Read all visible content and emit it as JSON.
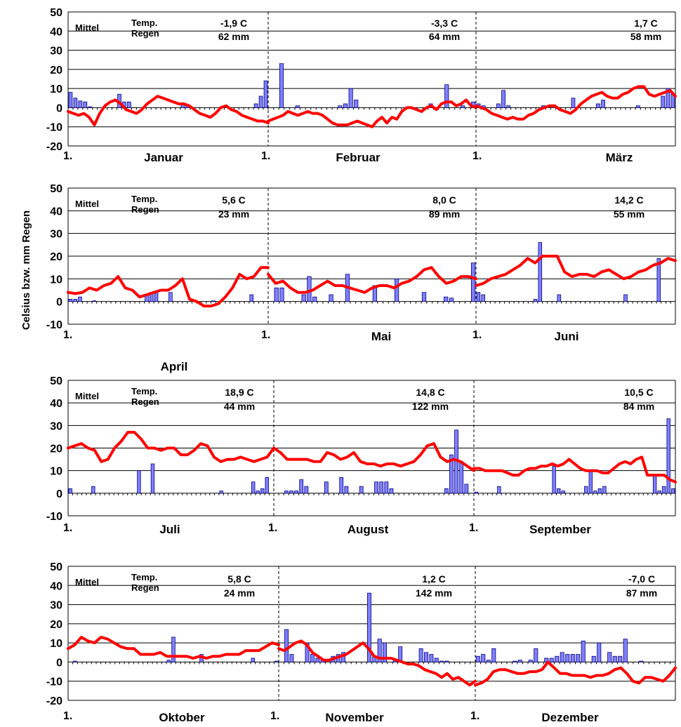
{
  "ylabel": "Celsius bzw. mm Regen",
  "colors": {
    "temperature": "#ff0000",
    "rain_fill": "#8080ff",
    "rain_stroke": "#00007f",
    "grid": "#000000"
  },
  "legend": {
    "mittel": "Mittel",
    "temp": "Temp.",
    "regen": "Regen"
  },
  "chart_data": [
    {
      "type": "bar",
      "yticks": [
        50,
        40,
        30,
        20,
        10,
        0,
        -10,
        -20
      ],
      "ylim": [
        -20,
        50
      ],
      "months": [
        {
          "name": "Januar",
          "start": "1.",
          "temp_summary": "-1,9  C",
          "rain_summary": "62 mm",
          "rain": [
            8,
            5,
            3.5,
            3,
            0.5,
            0,
            0,
            0,
            0,
            0,
            7,
            3,
            3,
            0,
            0,
            0,
            0,
            0,
            0,
            0,
            0,
            0,
            0,
            2,
            1,
            0,
            0,
            0,
            0,
            0,
            0,
            0,
            0,
            0,
            0,
            0,
            0,
            0,
            2,
            6,
            14
          ],
          "temp": [
            -2,
            -3,
            -4,
            -3,
            -5,
            -9,
            -3,
            1,
            3,
            4,
            2,
            -1,
            -2,
            -3,
            -1,
            2,
            4,
            6,
            5,
            4,
            3,
            2,
            2,
            1,
            -1,
            -3,
            -4,
            -5,
            -3,
            0,
            1,
            -1,
            -2,
            -4,
            -5,
            -6,
            -7,
            -7,
            -8
          ]
        },
        {
          "name": "Februar",
          "start": "1.",
          "temp_summary": "-3,3  C",
          "rain_summary": "64 mm",
          "rain": [
            0,
            0,
            23,
            0,
            0,
            1,
            0,
            0,
            0,
            0,
            0,
            0,
            0,
            1,
            2,
            10,
            4,
            0,
            0,
            0,
            0,
            0,
            0,
            0,
            0,
            0,
            0,
            0,
            0,
            0,
            2,
            0,
            0,
            12,
            0,
            0,
            1,
            0,
            3
          ],
          "temp": [
            -7,
            -6,
            -5,
            -4,
            -2,
            -3,
            -4,
            -3,
            -2,
            -3,
            -3,
            -4,
            -6,
            -8,
            -9,
            -9,
            -9,
            -8,
            -7,
            -8,
            -9,
            -10,
            -7,
            -5,
            -8,
            -5,
            -6,
            -2,
            0,
            0,
            -1,
            -2,
            0,
            1,
            -1,
            2,
            3,
            3,
            1,
            2,
            4,
            1,
            0
          ]
        },
        {
          "name": "März",
          "start": "1.",
          "temp_summary": "1,7  C",
          "rain_summary": "58 mm",
          "rain": [
            2,
            1,
            0,
            0,
            2,
            9,
            1,
            0,
            0,
            0,
            0,
            0,
            0,
            1,
            0,
            0,
            0,
            0,
            0,
            5,
            0,
            0,
            0,
            0,
            2,
            4,
            0,
            0,
            0,
            0,
            0,
            0,
            1,
            0,
            0,
            0,
            0,
            6,
            10,
            7
          ],
          "temp": [
            1,
            0,
            -1,
            -3,
            -4,
            -5,
            -6,
            -5,
            -6,
            -6,
            -4,
            -3,
            -1,
            0,
            1,
            1,
            -1,
            -2,
            -3,
            -1,
            2,
            4,
            6,
            7,
            8,
            6,
            5,
            5,
            7,
            8,
            10,
            11,
            11,
            7,
            6,
            7,
            8,
            9,
            6
          ]
        }
      ]
    },
    {
      "type": "bar",
      "yticks": [
        50,
        40,
        30,
        20,
        10,
        0,
        -10
      ],
      "ylim": [
        -10,
        50
      ],
      "months": [
        {
          "name": "April",
          "start": "1.",
          "temp_summary": "5,6  C",
          "rain_summary": "23 mm",
          "rain": [
            1,
            1,
            2,
            0,
            0,
            0.3,
            0,
            0,
            0,
            0,
            0,
            0,
            0,
            0,
            0,
            0,
            3,
            4,
            4,
            0,
            0,
            4,
            0,
            0,
            0,
            0,
            0,
            0,
            0,
            0,
            0.3,
            0,
            0,
            0,
            0,
            0,
            0,
            0,
            3,
            0,
            0,
            0
          ],
          "temp": [
            4,
            3.5,
            4,
            6,
            5,
            7,
            8,
            11,
            6,
            5,
            2,
            3,
            4,
            5,
            5,
            7,
            10,
            1,
            0,
            -2,
            -2,
            -1,
            2,
            6,
            12,
            10,
            11,
            15,
            15
          ]
        },
        {
          "name": "Mai",
          "start": "1.",
          "temp_summary": "8,0  C",
          "rain_summary": "89 mm",
          "rain": [
            0,
            6,
            6,
            0,
            0,
            0,
            3,
            11,
            2,
            0,
            0,
            3,
            0,
            0,
            12,
            0,
            0,
            0,
            0,
            7,
            0,
            0,
            0,
            10,
            0,
            0,
            0,
            0,
            4,
            0,
            0,
            0,
            2,
            1.5,
            0,
            0,
            0,
            17
          ],
          "temp": [
            12,
            8,
            9,
            6,
            4,
            4,
            5,
            7,
            9,
            7,
            7,
            6,
            5,
            4,
            6,
            7,
            7,
            6,
            8,
            9,
            11,
            14,
            15,
            11,
            8,
            9,
            11,
            11,
            10
          ]
        },
        {
          "name": "Juni",
          "start": "1.",
          "temp_summary": "14,2  C",
          "rain_summary": "55 mm",
          "rain": [
            4,
            3,
            0,
            0,
            0,
            0,
            0,
            0,
            0,
            0,
            0,
            0,
            1,
            26,
            0,
            0,
            0,
            3,
            0,
            0,
            0,
            0,
            0,
            0,
            0,
            0,
            0,
            0,
            0,
            0,
            0,
            3,
            0,
            0,
            0,
            0,
            0,
            0,
            19,
            0,
            0,
            0
          ],
          "temp": [
            7,
            8,
            10,
            11,
            12,
            14,
            16,
            19,
            17,
            20,
            20,
            20,
            13,
            11,
            12,
            12,
            11,
            13,
            14,
            12,
            10,
            11,
            13,
            14,
            16,
            17,
            19,
            18
          ]
        }
      ]
    },
    {
      "type": "bar",
      "yticks": [
        50,
        40,
        30,
        20,
        10,
        0,
        -10
      ],
      "ylim": [
        -10,
        50
      ],
      "months": [
        {
          "name": "Juli",
          "start": "1.",
          "temp_summary": "18,9  C",
          "rain_summary": "44 mm",
          "rain": [
            2,
            0,
            0,
            0,
            0,
            3,
            0,
            0,
            0,
            0,
            0,
            0,
            0,
            0,
            0,
            10,
            0,
            0,
            13,
            0,
            0,
            0,
            0,
            0,
            0,
            0,
            0,
            0,
            0,
            0,
            0,
            0,
            0,
            1,
            0,
            0,
            0,
            0,
            0,
            0,
            5,
            1,
            2,
            7,
            0
          ],
          "temp": [
            20,
            21,
            22,
            20,
            19,
            14,
            15,
            20,
            23,
            27,
            27,
            24,
            20,
            20,
            19,
            20,
            20,
            17,
            17,
            19,
            22,
            21,
            16,
            14,
            15,
            15,
            16,
            15,
            14,
            15,
            16,
            20
          ]
        },
        {
          "name": "August",
          "start": "1.",
          "temp_summary": "14,8  C",
          "rain_summary": "122 mm",
          "rain": [
            0,
            0,
            1,
            1,
            1,
            6,
            3,
            0,
            0,
            0,
            5,
            0,
            0,
            7,
            3,
            0,
            0,
            3,
            0,
            0,
            5,
            5,
            5,
            2,
            0,
            0,
            0,
            0,
            0,
            0,
            0,
            0,
            0,
            0,
            2,
            17,
            28,
            14,
            4,
            0
          ],
          "temp": [
            20,
            18,
            15,
            15,
            15,
            15,
            14,
            14,
            18,
            17,
            15,
            16,
            18,
            14,
            13,
            13,
            12,
            13,
            13,
            12,
            13,
            14,
            17,
            21,
            22,
            16,
            14,
            15,
            14,
            12,
            10
          ]
        },
        {
          "name": "September",
          "start": "1.",
          "temp_summary": "10,5  C",
          "rain_summary": "84 mm",
          "rain": [
            0.5,
            0,
            0,
            0,
            0,
            3,
            0,
            0,
            0,
            0,
            0,
            0,
            0,
            0,
            0,
            0,
            0,
            12,
            2,
            1,
            0,
            0,
            0,
            0,
            3,
            10,
            1,
            2,
            3,
            0,
            0,
            0,
            0,
            0,
            0,
            0,
            0,
            0,
            0,
            8,
            1,
            3,
            33,
            2
          ],
          "temp": [
            11,
            11,
            10,
            10,
            10,
            10,
            9,
            8,
            8,
            10,
            11,
            11,
            12,
            12,
            13,
            12,
            13,
            15,
            13,
            11,
            10,
            10,
            10,
            9,
            9,
            11,
            13,
            14,
            13,
            15,
            16,
            8,
            8,
            8,
            8,
            6,
            5
          ]
        }
      ]
    },
    {
      "type": "bar",
      "yticks": [
        50,
        40,
        30,
        20,
        10,
        0,
        -10,
        -20
      ],
      "ylim": [
        -20,
        50
      ],
      "months": [
        {
          "name": "Oktober",
          "start": "1.",
          "temp_summary": "5,8  C",
          "rain_summary": "24 mm",
          "rain": [
            0,
            0.5,
            0,
            0,
            0,
            0,
            0,
            0,
            0,
            0,
            0,
            0,
            0,
            0,
            0,
            0,
            0,
            0,
            0,
            0,
            0,
            1,
            13,
            0,
            0,
            0,
            0,
            0,
            4,
            0,
            0,
            0,
            0,
            0,
            0,
            0,
            0,
            0,
            0,
            2,
            0,
            0,
            0,
            0,
            0.5
          ],
          "temp": [
            7,
            9,
            13,
            11,
            10,
            13,
            12,
            10,
            8,
            7,
            7,
            4,
            4,
            4,
            5,
            3,
            3,
            3,
            3,
            2,
            3,
            2,
            3,
            3,
            4,
            4,
            4,
            6,
            6,
            6,
            8,
            10,
            9
          ]
        },
        {
          "name": "November",
          "start": "1.",
          "temp_summary": "1,2  C",
          "rain_summary": "142 mm",
          "rain": [
            0,
            17,
            4,
            0,
            0,
            10,
            4,
            2,
            1,
            0,
            3,
            4,
            5,
            0,
            0,
            0,
            0,
            36,
            3,
            12,
            10,
            0,
            1,
            8,
            0,
            0,
            0,
            7,
            5,
            4,
            2,
            0.5,
            0.5,
            0,
            0,
            0,
            0,
            0
          ],
          "temp": [
            7,
            6,
            8,
            10,
            11,
            9,
            5,
            3,
            1,
            1,
            2,
            3,
            4,
            6,
            8,
            10,
            7,
            3,
            2,
            2,
            2,
            1,
            0,
            -1,
            -1,
            -2,
            -4,
            -5,
            -6,
            -8,
            -6,
            -9,
            -8,
            -10,
            -12,
            -10
          ]
        },
        {
          "name": "Dezember",
          "start": "1.",
          "temp_summary": "-7,0  C",
          "rain_summary": "87 mm",
          "rain": [
            3,
            4,
            1,
            7,
            0,
            0,
            0,
            0.5,
            1,
            0,
            1,
            7,
            0,
            2,
            2,
            3,
            5,
            4,
            4,
            4,
            11,
            0,
            3,
            10,
            0,
            5,
            3,
            3,
            12,
            0,
            0,
            0.5,
            0,
            0,
            0,
            0,
            0,
            0
          ],
          "temp": [
            -12,
            -11,
            -9,
            -5,
            -4,
            -4,
            -5,
            -6,
            -6,
            -5,
            -5,
            -4,
            0,
            -3,
            -6,
            -6,
            -7,
            -7,
            -7,
            -8,
            -7,
            -7,
            -6,
            -4,
            -3,
            -6,
            -10,
            -11,
            -8,
            -8,
            -9,
            -10,
            -7,
            -3
          ]
        }
      ]
    }
  ]
}
